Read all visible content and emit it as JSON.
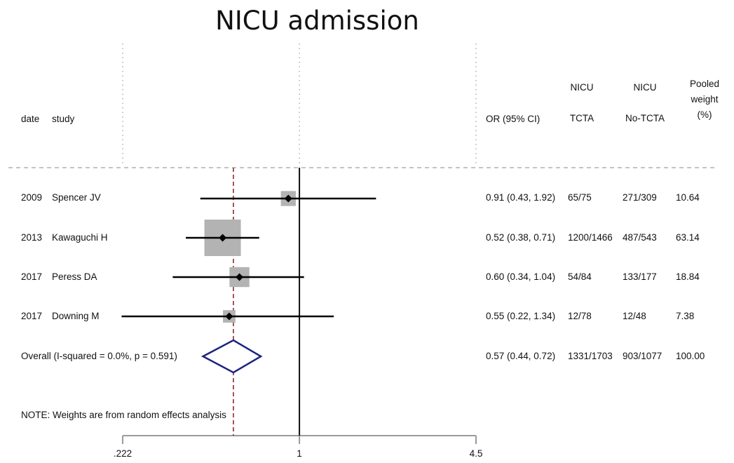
{
  "chart_data": {
    "type": "forest",
    "title": "NICU admission",
    "columns": {
      "date": "date",
      "study": "study",
      "or": "OR (95% CI)",
      "tcta": [
        "NICU",
        "TCTA"
      ],
      "notcta": [
        "NICU",
        "No-TCTA"
      ],
      "weight": [
        "Pooled",
        "weight",
        "(%)"
      ]
    },
    "xaxis": {
      "scale": "log",
      "ticks": [
        ".222",
        "1",
        "4.5"
      ],
      "tick_values": [
        0.222,
        1,
        4.5
      ],
      "range": [
        0.222,
        4.5
      ]
    },
    "null_line": 1,
    "pooled_line": 0.57,
    "studies": [
      {
        "date": "2009",
        "study": "Spencer JV",
        "or": 0.91,
        "lo": 0.43,
        "hi": 1.92,
        "or_text": "0.91 (0.43, 1.92)",
        "tcta": "65/75",
        "notcta": "271/309",
        "weight": 10.64,
        "weight_text": "10.64"
      },
      {
        "date": "2013",
        "study": "Kawaguchi H",
        "or": 0.52,
        "lo": 0.38,
        "hi": 0.71,
        "or_text": "0.52 (0.38, 0.71)",
        "tcta": "1200/1466",
        "notcta": "487/543",
        "weight": 63.14,
        "weight_text": "63.14"
      },
      {
        "date": "2017",
        "study": "Peress DA",
        "or": 0.6,
        "lo": 0.34,
        "hi": 1.04,
        "or_text": "0.60 (0.34, 1.04)",
        "tcta": "54/84",
        "notcta": "133/177",
        "weight": 18.84,
        "weight_text": "18.84"
      },
      {
        "date": "2017",
        "study": "Downing M",
        "or": 0.55,
        "lo": 0.22,
        "hi": 1.34,
        "or_text": "0.55 (0.22, 1.34)",
        "tcta": "12/78",
        "notcta": "12/48",
        "weight": 7.38,
        "weight_text": "7.38"
      }
    ],
    "overall": {
      "label": "Overall  (I-squared = 0.0%, p = 0.591)",
      "or": 0.57,
      "lo": 0.44,
      "hi": 0.72,
      "or_text": "0.57 (0.44, 0.72)",
      "tcta": "1331/1703",
      "notcta": "903/1077",
      "weight_text": "100.00"
    },
    "note": "NOTE: Weights are from random effects analysis",
    "colors": {
      "box": "#b3b3b3",
      "diamond": "#1a237e",
      "pooled_line": "#8b1a1a",
      "grid": "#b0b0b0"
    }
  }
}
